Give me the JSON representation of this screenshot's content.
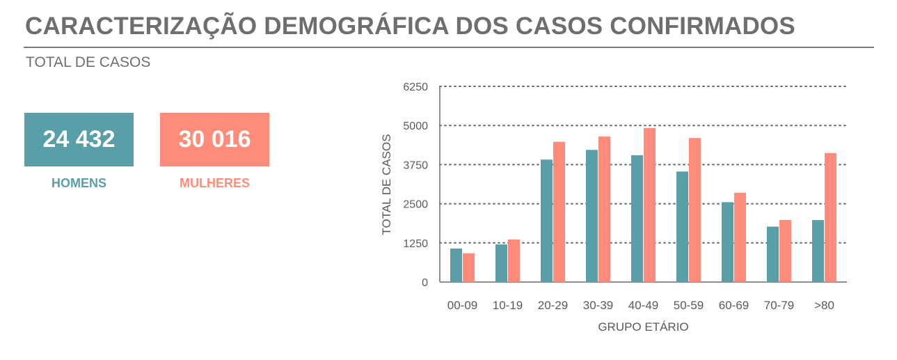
{
  "header": {
    "title": "CARACTERIZAÇÃO DEMOGRÁFICA DOS CASOS CONFIRMADOS",
    "subtitle": "TOTAL DE CASOS"
  },
  "kpis": {
    "men": {
      "value": "24 432",
      "label": "HOMENS",
      "color": "#5a9fa8"
    },
    "women": {
      "value": "30 016",
      "label": "MULHERES",
      "color": "#ff8c7a"
    }
  },
  "chart_data": {
    "type": "bar",
    "categories": [
      "00-09",
      "10-19",
      "20-29",
      "30-39",
      "40-49",
      "50-59",
      "60-69",
      "70-79",
      ">80"
    ],
    "series": [
      {
        "name": "HOMENS",
        "color": "#5a9fa8",
        "values": [
          1070,
          1200,
          3910,
          4220,
          4050,
          3530,
          2550,
          1770,
          1980
        ]
      },
      {
        "name": "MULHERES",
        "color": "#ff8c7a",
        "values": [
          920,
          1360,
          4480,
          4650,
          4920,
          4600,
          2850,
          1980,
          4120
        ]
      }
    ],
    "xlabel": "GRUPO ETÁRIO",
    "ylabel": "TOTAL DE CASOS",
    "ylim": [
      0,
      6250
    ],
    "yticks": [
      0,
      1250,
      2500,
      3750,
      5000,
      6250
    ],
    "grid": true,
    "legend": "none"
  }
}
